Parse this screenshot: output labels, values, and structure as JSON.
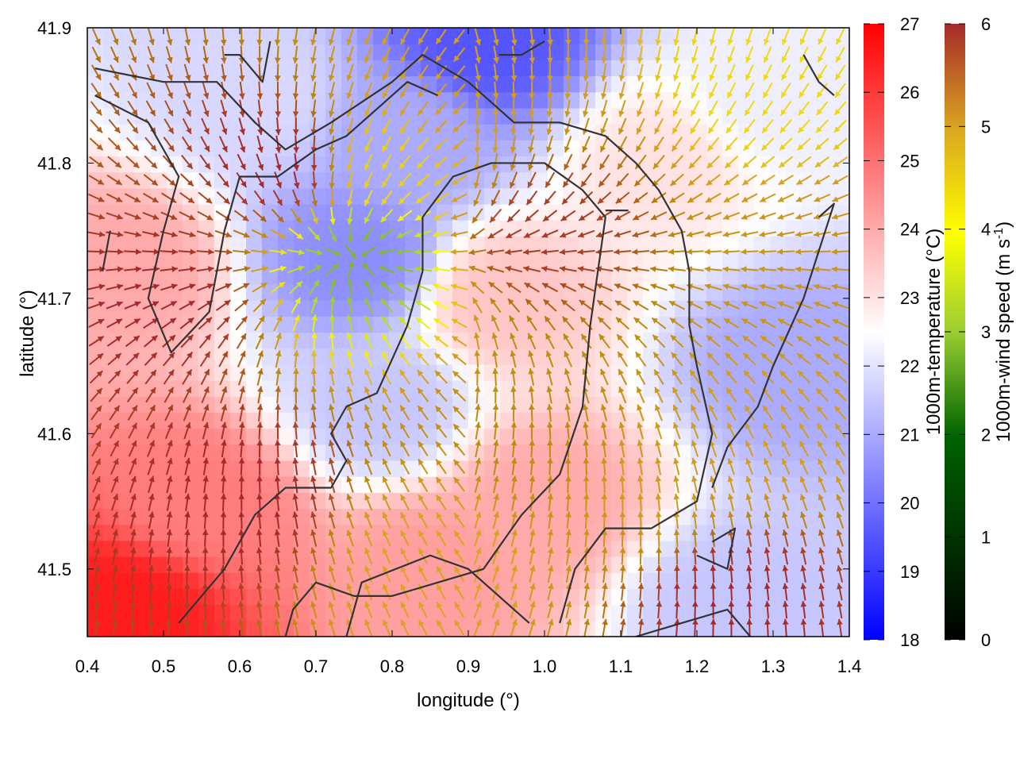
{
  "chart_data": {
    "type": "heatmap",
    "xlabel": "longitude (°)",
    "ylabel": "latitude (°)",
    "xlim": [
      0.4,
      1.4
    ],
    "ylim": [
      41.45,
      41.9
    ],
    "x_ticks": [
      "0.4",
      "0.5",
      "0.6",
      "0.7",
      "0.8",
      "0.9",
      "1.0",
      "1.1",
      "1.2",
      "1.3",
      "1.4"
    ],
    "y_ticks": [
      "41.5",
      "41.6",
      "41.7",
      "41.8",
      "41.9"
    ],
    "temperature_colorbar": {
      "label": "1000m-temperature (°C)",
      "range": [
        18,
        27
      ],
      "ticks": [
        "18",
        "19",
        "20",
        "21",
        "22",
        "23",
        "24",
        "25",
        "26",
        "27"
      ],
      "colors": [
        "#0000ff",
        "#ffffff",
        "#ff0000"
      ]
    },
    "wind_colorbar": {
      "label_main": "1000m-wind speed (m s",
      "label_sup": "-1",
      "label_end": ")",
      "range": [
        0,
        6
      ],
      "ticks": [
        "0",
        "1",
        "2",
        "3",
        "4",
        "5",
        "6"
      ],
      "colors": [
        "#000000",
        "#006400",
        "#9acd32",
        "#ffff00",
        "#daa520",
        "#b8860b",
        "#a52a2a"
      ]
    },
    "grid": false,
    "temperature_anchors": [
      {
        "lon": 0.45,
        "lat": 41.47,
        "t": 26.5
      },
      {
        "lon": 0.55,
        "lat": 41.55,
        "t": 24.8
      },
      {
        "lon": 0.45,
        "lat": 41.72,
        "t": 24.0
      },
      {
        "lon": 0.75,
        "lat": 41.73,
        "t": 20.5
      },
      {
        "lon": 0.78,
        "lat": 41.62,
        "t": 21.5
      },
      {
        "lon": 0.62,
        "lat": 41.85,
        "t": 21.8
      },
      {
        "lon": 0.92,
        "lat": 41.89,
        "t": 19.5
      },
      {
        "lon": 0.82,
        "lat": 41.82,
        "t": 21.0
      },
      {
        "lon": 1.32,
        "lat": 41.65,
        "t": 21.0
      },
      {
        "lon": 1.25,
        "lat": 41.48,
        "t": 21.5
      },
      {
        "lon": 1.0,
        "lat": 41.55,
        "t": 24.0
      },
      {
        "lon": 0.95,
        "lat": 41.7,
        "t": 23.5
      },
      {
        "lon": 1.15,
        "lat": 41.8,
        "t": 23.0
      },
      {
        "lon": 0.85,
        "lat": 41.5,
        "t": 24.2
      },
      {
        "lon": 1.3,
        "lat": 41.85,
        "t": 22.2
      }
    ],
    "wind_speed_anchors": [
      {
        "lon": 0.76,
        "lat": 41.73,
        "s": 1.8
      },
      {
        "lon": 0.8,
        "lat": 41.8,
        "s": 3.5
      },
      {
        "lon": 0.88,
        "lat": 41.85,
        "s": 4.2
      },
      {
        "lon": 1.0,
        "lat": 41.6,
        "s": 4.8
      },
      {
        "lon": 1.15,
        "lat": 41.56,
        "s": 4.3
      },
      {
        "lon": 1.3,
        "lat": 41.86,
        "s": 3.4
      },
      {
        "lon": 1.35,
        "lat": 41.72,
        "s": 4.5
      },
      {
        "lon": 1.28,
        "lat": 41.6,
        "s": 4.2
      },
      {
        "lon": 0.5,
        "lat": 41.7,
        "s": 6.0
      },
      {
        "lon": 0.6,
        "lat": 41.55,
        "s": 6.0
      },
      {
        "lon": 0.65,
        "lat": 41.8,
        "s": 6.0
      },
      {
        "lon": 1.0,
        "lat": 41.75,
        "s": 5.8
      },
      {
        "lon": 1.25,
        "lat": 41.48,
        "s": 6.0
      },
      {
        "lon": 0.85,
        "lat": 41.5,
        "s": 4.0
      }
    ],
    "wind_direction_note": "",
    "contours": [
      [
        [
          0.41,
          41.87
        ],
        [
          0.5,
          41.86
        ],
        [
          0.57,
          41.86
        ],
        [
          0.62,
          41.83
        ],
        [
          0.66,
          41.81
        ],
        [
          0.72,
          41.83
        ],
        [
          0.8,
          41.86
        ],
        [
          0.84,
          41.88
        ],
        [
          0.9,
          41.86
        ],
        [
          0.96,
          41.83
        ],
        [
          1.02,
          41.83
        ],
        [
          1.08,
          41.82
        ],
        [
          1.12,
          41.8
        ],
        [
          1.15,
          41.78
        ],
        [
          1.18,
          41.75
        ],
        [
          1.19,
          41.72
        ],
        [
          1.19,
          41.68
        ],
        [
          1.2,
          41.65
        ],
        [
          1.22,
          41.6
        ],
        [
          1.2,
          41.55
        ],
        [
          1.14,
          41.53
        ],
        [
          1.08,
          41.53
        ],
        [
          1.04,
          41.5
        ],
        [
          1.02,
          41.46
        ]
      ],
      [
        [
          0.41,
          41.85
        ],
        [
          0.48,
          41.83
        ],
        [
          0.52,
          41.79
        ],
        [
          0.5,
          41.75
        ],
        [
          0.48,
          41.7
        ],
        [
          0.51,
          41.66
        ],
        [
          0.56,
          41.69
        ],
        [
          0.58,
          41.75
        ],
        [
          0.6,
          41.79
        ],
        [
          0.65,
          41.79
        ],
        [
          0.7,
          41.81
        ],
        [
          0.74,
          41.82
        ],
        [
          0.78,
          41.84
        ],
        [
          0.82,
          41.86
        ],
        [
          0.86,
          41.85
        ]
      ],
      [
        [
          0.52,
          41.46
        ],
        [
          0.58,
          41.5
        ],
        [
          0.62,
          41.54
        ],
        [
          0.66,
          41.56
        ],
        [
          0.72,
          41.56
        ],
        [
          0.74,
          41.58
        ],
        [
          0.72,
          41.6
        ],
        [
          0.74,
          41.62
        ],
        [
          0.78,
          41.63
        ],
        [
          0.82,
          41.68
        ],
        [
          0.84,
          41.72
        ],
        [
          0.84,
          41.76
        ],
        [
          0.88,
          41.79
        ],
        [
          0.93,
          41.8
        ],
        [
          1.0,
          41.8
        ],
        [
          1.05,
          41.78
        ],
        [
          1.08,
          41.76
        ],
        [
          1.07,
          41.72
        ],
        [
          1.06,
          41.68
        ],
        [
          1.05,
          41.62
        ],
        [
          1.02,
          41.57
        ],
        [
          0.97,
          41.54
        ],
        [
          0.92,
          41.5
        ],
        [
          0.86,
          41.49
        ],
        [
          0.8,
          41.48
        ],
        [
          0.75,
          41.48
        ],
        [
          0.7,
          41.49
        ],
        [
          0.67,
          41.47
        ],
        [
          0.66,
          41.45
        ]
      ],
      [
        [
          0.74,
          41.45
        ],
        [
          0.76,
          41.49
        ],
        [
          0.85,
          41.51
        ],
        [
          0.9,
          41.5
        ],
        [
          0.96,
          41.47
        ],
        [
          0.98,
          41.46
        ]
      ],
      [
        [
          1.12,
          41.45
        ],
        [
          1.18,
          41.46
        ],
        [
          1.24,
          41.47
        ],
        [
          1.27,
          41.45
        ]
      ],
      [
        [
          1.2,
          41.51
        ],
        [
          1.24,
          41.5
        ],
        [
          1.25,
          41.53
        ],
        [
          1.22,
          41.52
        ]
      ],
      [
        [
          1.34,
          41.88
        ],
        [
          1.36,
          41.86
        ],
        [
          1.38,
          41.85
        ]
      ],
      [
        [
          1.36,
          41.76
        ],
        [
          1.38,
          41.77
        ],
        [
          1.34,
          41.7
        ],
        [
          1.3,
          41.65
        ],
        [
          1.28,
          41.62
        ],
        [
          1.24,
          41.59
        ],
        [
          1.22,
          41.56
        ]
      ],
      [
        [
          0.58,
          41.88
        ],
        [
          0.6,
          41.88
        ],
        [
          0.63,
          41.86
        ],
        [
          0.64,
          41.89
        ]
      ],
      [
        [
          0.94,
          41.88
        ],
        [
          0.97,
          41.88
        ],
        [
          1.0,
          41.89
        ]
      ],
      [
        [
          0.43,
          41.75
        ],
        [
          0.42,
          41.72
        ]
      ],
      [
        [
          1.08,
          41.765
        ],
        [
          1.11,
          41.765
        ]
      ]
    ]
  }
}
